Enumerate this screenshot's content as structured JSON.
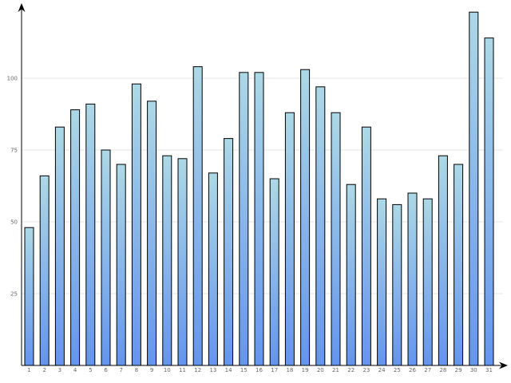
{
  "chart_data": {
    "type": "bar",
    "categories": [
      "1",
      "2",
      "3",
      "4",
      "5",
      "6",
      "7",
      "8",
      "9",
      "10",
      "11",
      "12",
      "13",
      "14",
      "15",
      "16",
      "17",
      "18",
      "19",
      "20",
      "21",
      "22",
      "23",
      "24",
      "25",
      "26",
      "27",
      "28",
      "29",
      "30",
      "31"
    ],
    "values": [
      48,
      66,
      83,
      89,
      91,
      75,
      70,
      98,
      92,
      73,
      72,
      104,
      67,
      79,
      102,
      102,
      65,
      88,
      103,
      97,
      88,
      63,
      83,
      58,
      56,
      60,
      58,
      73,
      70,
      123,
      114
    ],
    "y_ticks": [
      "25",
      "50",
      "75",
      "100"
    ],
    "ylim": [
      0,
      125
    ],
    "title": "",
    "xlabel": "",
    "ylabel": "",
    "grid": "horizontal",
    "colors": {
      "bar_top": "#add8e6",
      "bar_bottom": "#6495ed",
      "grid": "#e6e6e6",
      "axis": "#000000",
      "label": "#666666"
    }
  }
}
